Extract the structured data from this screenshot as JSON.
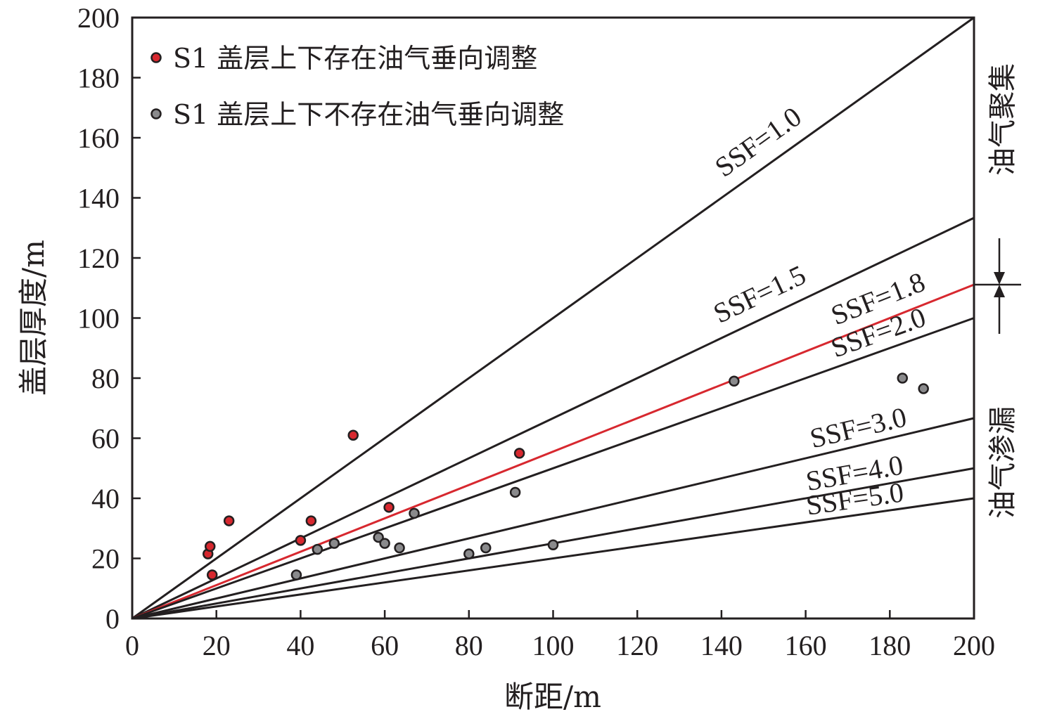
{
  "chart_data": {
    "type": "scatter",
    "xlabel": "断距/m",
    "ylabel": "盖层厚度/m",
    "xlim": [
      0,
      200
    ],
    "ylim": [
      0,
      200
    ],
    "xticks": [
      "0",
      "20",
      "40",
      "60",
      "80",
      "100",
      "120",
      "140",
      "160",
      "180",
      "200"
    ],
    "yticks": [
      "0",
      "20",
      "40",
      "60",
      "80",
      "100",
      "120",
      "140",
      "160",
      "180",
      "200"
    ],
    "grid": false,
    "legend_position": "top-left",
    "series": [
      {
        "name": "S1 盖层上下存在油气垂向调整",
        "marker": "circle",
        "color": "#d7282f",
        "points": [
          [
            18,
            21.5
          ],
          [
            18.5,
            24
          ],
          [
            19,
            14.5
          ],
          [
            23,
            32.5
          ],
          [
            40,
            26
          ],
          [
            42.5,
            32.5
          ],
          [
            52.5,
            61
          ],
          [
            61,
            37
          ],
          [
            92,
            55
          ]
        ]
      },
      {
        "name": "S1 盖层上下不存在油气垂向调整",
        "marker": "circle",
        "color": "#8a8a8c",
        "points": [
          [
            39,
            14.5
          ],
          [
            44,
            23
          ],
          [
            48,
            25
          ],
          [
            58.5,
            27
          ],
          [
            60,
            25
          ],
          [
            63.5,
            23.5
          ],
          [
            67,
            35
          ],
          [
            80,
            21.5
          ],
          [
            84,
            23.5
          ],
          [
            91,
            42
          ],
          [
            100,
            24.5
          ],
          [
            143,
            79
          ],
          [
            183,
            80
          ],
          [
            188,
            76.5
          ]
        ]
      }
    ],
    "reference_lines": [
      {
        "label": "SSF=1.0",
        "ssf": 1.0,
        "color": "#231f20"
      },
      {
        "label": "SSF=1.5",
        "ssf": 1.5,
        "color": "#231f20"
      },
      {
        "label": "SSF=1.8",
        "ssf": 1.8,
        "color": "#d7282f"
      },
      {
        "label": "SSF=2.0",
        "ssf": 2.0,
        "color": "#231f20"
      },
      {
        "label": "SSF=3.0",
        "ssf": 3.0,
        "color": "#231f20"
      },
      {
        "label": "SSF=4.0",
        "ssf": 4.0,
        "color": "#231f20"
      },
      {
        "label": "SSF=5.0",
        "ssf": 5.0,
        "color": "#231f20"
      }
    ],
    "zone_labels": {
      "upper": "油气聚集",
      "lower": "油气渗漏"
    }
  }
}
